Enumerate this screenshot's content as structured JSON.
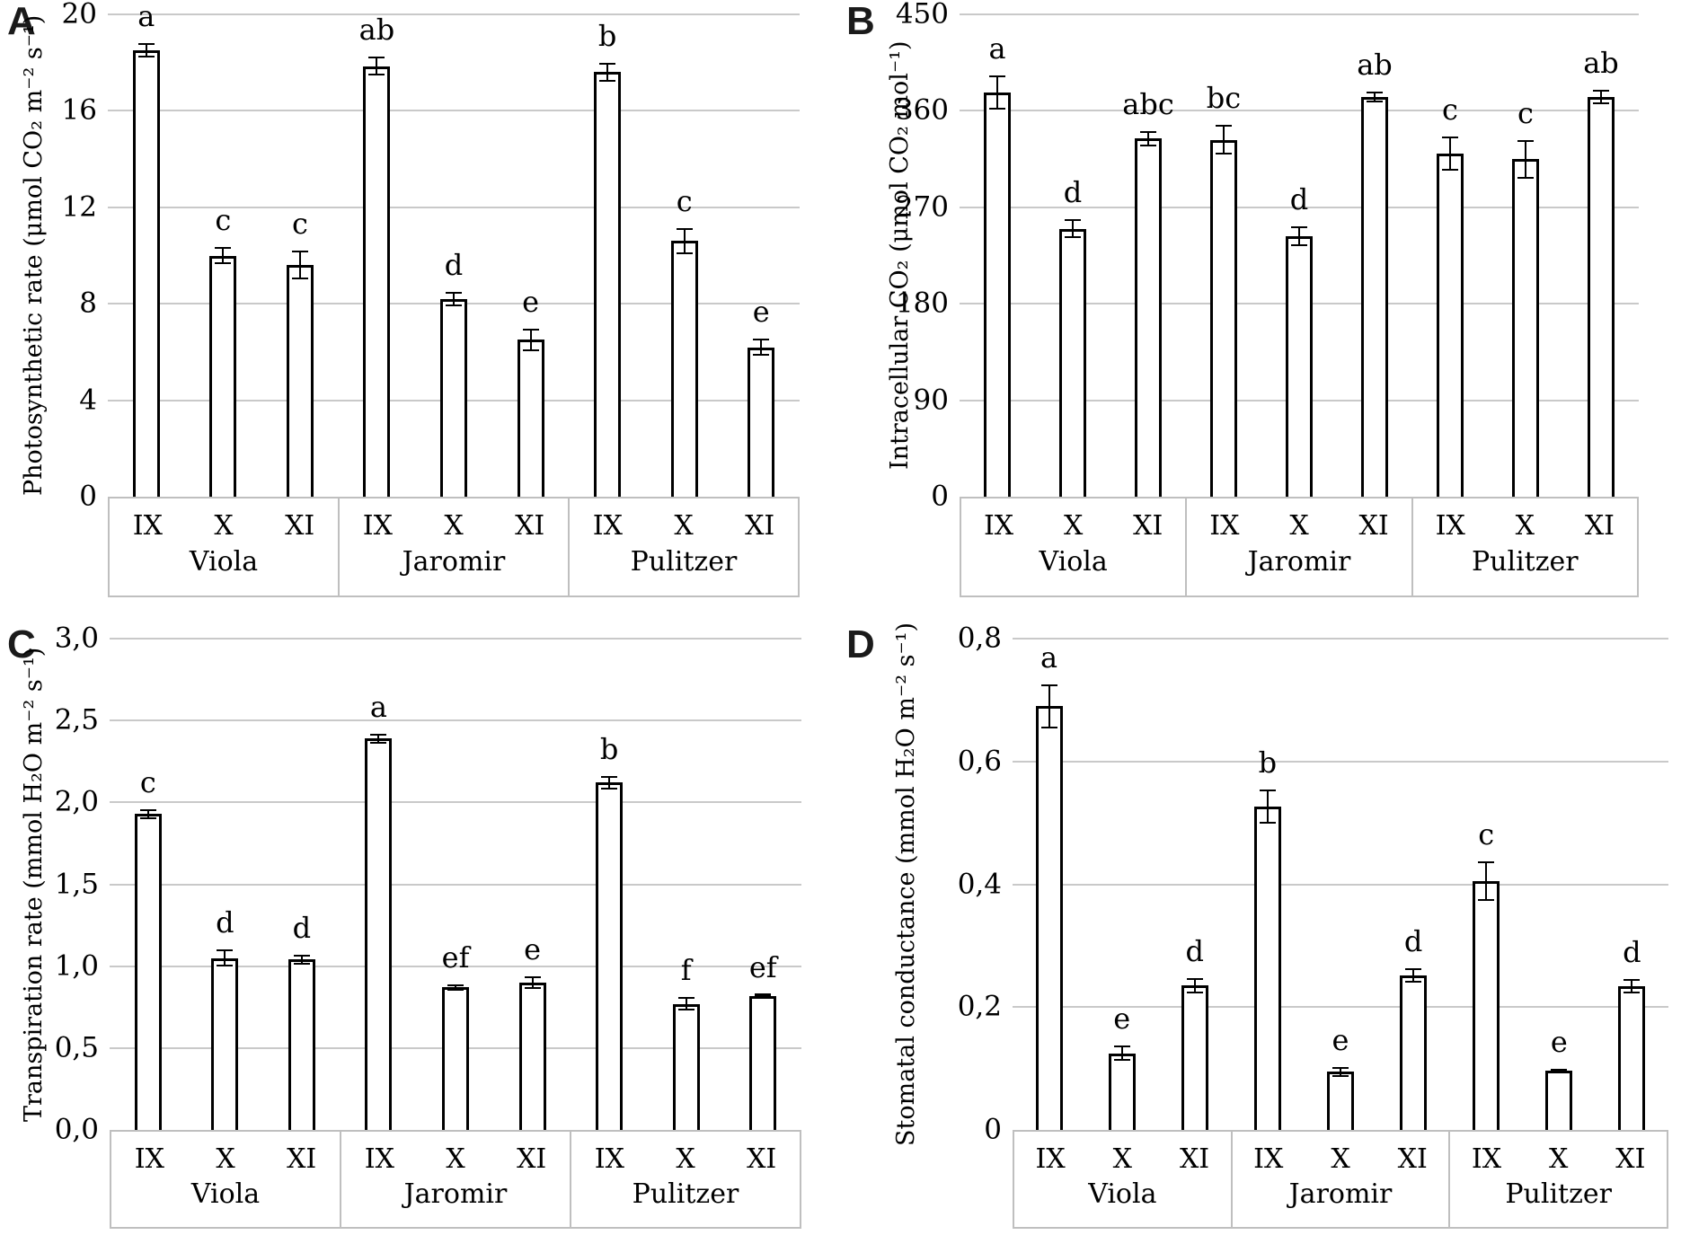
{
  "figure": {
    "background": "#ffffff",
    "text_color": "#000000",
    "gridline_color": "#c9c9c9",
    "bar_fill": "#ffffff",
    "bar_border": "#000000",
    "category_box_border": "#bfbfbf"
  },
  "chart_data": [
    {
      "type": "bar",
      "panel": "A",
      "ylabel": "Photosynthetic rate (μmol CO₂ m⁻² s⁻¹)",
      "ylim": [
        0,
        20
      ],
      "grid": true,
      "legend": "none",
      "yticks": [
        {
          "v": 0,
          "label": "0"
        },
        {
          "v": 4,
          "label": "4"
        },
        {
          "v": 8,
          "label": "8"
        },
        {
          "v": 12,
          "label": "12"
        },
        {
          "v": 16,
          "label": "16"
        },
        {
          "v": 20,
          "label": "20"
        }
      ],
      "groups": [
        {
          "name": "Viola",
          "bars": [
            {
              "month": "IX",
              "value": 18.5,
              "error": 0.3,
              "sig": "a"
            },
            {
              "month": "X",
              "value": 10.0,
              "error": 0.35,
              "sig": "c"
            },
            {
              "month": "XI",
              "value": 9.6,
              "error": 0.6,
              "sig": "c"
            }
          ]
        },
        {
          "name": "Jaromir",
          "bars": [
            {
              "month": "IX",
              "value": 17.85,
              "error": 0.4,
              "sig": "ab"
            },
            {
              "month": "X",
              "value": 8.2,
              "error": 0.3,
              "sig": "d"
            },
            {
              "month": "XI",
              "value": 6.5,
              "error": 0.45,
              "sig": "e"
            }
          ]
        },
        {
          "name": "Pulitzer",
          "bars": [
            {
              "month": "IX",
              "value": 17.6,
              "error": 0.4,
              "sig": "b"
            },
            {
              "month": "X",
              "value": 10.6,
              "error": 0.55,
              "sig": "c"
            },
            {
              "month": "XI",
              "value": 6.2,
              "error": 0.35,
              "sig": "e"
            }
          ]
        }
      ]
    },
    {
      "type": "bar",
      "panel": "B",
      "ylabel": "Intracellular CO₂ (μmol CO₂ mol⁻¹)",
      "ylim": [
        0,
        450
      ],
      "grid": true,
      "legend": "none",
      "yticks": [
        {
          "v": 0,
          "label": "0"
        },
        {
          "v": 90,
          "label": "90"
        },
        {
          "v": 180,
          "label": "180"
        },
        {
          "v": 270,
          "label": "270"
        },
        {
          "v": 360,
          "label": "360"
        },
        {
          "v": 450,
          "label": "450"
        }
      ],
      "groups": [
        {
          "name": "Viola",
          "bars": [
            {
              "month": "IX",
              "value": 377,
              "error": 16,
              "sig": "a"
            },
            {
              "month": "X",
              "value": 250,
              "error": 9,
              "sig": "d"
            },
            {
              "month": "XI",
              "value": 334,
              "error": 7,
              "sig": "abc"
            }
          ]
        },
        {
          "name": "Jaromir",
          "bars": [
            {
              "month": "IX",
              "value": 333,
              "error": 14,
              "sig": "bc"
            },
            {
              "month": "X",
              "value": 243,
              "error": 9,
              "sig": "d"
            },
            {
              "month": "XI",
              "value": 373,
              "error": 5,
              "sig": "ab"
            }
          ]
        },
        {
          "name": "Pulitzer",
          "bars": [
            {
              "month": "IX",
              "value": 320,
              "error": 16,
              "sig": "c"
            },
            {
              "month": "X",
              "value": 315,
              "error": 18,
              "sig": "c"
            },
            {
              "month": "XI",
              "value": 373,
              "error": 7,
              "sig": "ab"
            }
          ]
        }
      ]
    },
    {
      "type": "bar",
      "panel": "C",
      "ylabel": "Transpiration rate (mmol H₂O m⁻² s⁻¹)",
      "ylim": [
        0,
        3.0
      ],
      "grid": true,
      "legend": "none",
      "yticks": [
        {
          "v": 0,
          "label": "0,0"
        },
        {
          "v": 0.5,
          "label": "0,5"
        },
        {
          "v": 1.0,
          "label": "1,0"
        },
        {
          "v": 1.5,
          "label": "1,5"
        },
        {
          "v": 2.0,
          "label": "2,0"
        },
        {
          "v": 2.5,
          "label": "2,5"
        },
        {
          "v": 3.0,
          "label": "3,0"
        }
      ],
      "groups": [
        {
          "name": "Viola",
          "bars": [
            {
              "month": "IX",
              "value": 1.93,
              "error": 0.03,
              "sig": "c"
            },
            {
              "month": "X",
              "value": 1.05,
              "error": 0.05,
              "sig": "d"
            },
            {
              "month": "XI",
              "value": 1.04,
              "error": 0.03,
              "sig": "d"
            }
          ]
        },
        {
          "name": "Jaromir",
          "bars": [
            {
              "month": "IX",
              "value": 2.39,
              "error": 0.03,
              "sig": "a"
            },
            {
              "month": "X",
              "value": 0.87,
              "error": 0.02,
              "sig": "ef"
            },
            {
              "month": "XI",
              "value": 0.9,
              "error": 0.04,
              "sig": "e"
            }
          ]
        },
        {
          "name": "Pulitzer",
          "bars": [
            {
              "month": "IX",
              "value": 2.12,
              "error": 0.04,
              "sig": "b"
            },
            {
              "month": "X",
              "value": 0.77,
              "error": 0.04,
              "sig": "f"
            },
            {
              "month": "XI",
              "value": 0.82,
              "error": 0.01,
              "sig": "ef"
            }
          ]
        }
      ]
    },
    {
      "type": "bar",
      "panel": "D",
      "ylabel": "Stomatal conductance (mmol H₂O m⁻² s⁻¹)",
      "ylim": [
        0,
        0.8
      ],
      "grid": true,
      "legend": "none",
      "yticks": [
        {
          "v": 0,
          "label": "0"
        },
        {
          "v": 0.2,
          "label": "0,2"
        },
        {
          "v": 0.4,
          "label": "0,4"
        },
        {
          "v": 0.6,
          "label": "0,6"
        },
        {
          "v": 0.8,
          "label": "0,8"
        }
      ],
      "groups": [
        {
          "name": "Viola",
          "bars": [
            {
              "month": "IX",
              "value": 0.69,
              "error": 0.036,
              "sig": "a"
            },
            {
              "month": "X",
              "value": 0.125,
              "error": 0.012,
              "sig": "e"
            },
            {
              "month": "XI",
              "value": 0.235,
              "error": 0.012,
              "sig": "d"
            }
          ]
        },
        {
          "name": "Jaromir",
          "bars": [
            {
              "month": "IX",
              "value": 0.527,
              "error": 0.028,
              "sig": "b"
            },
            {
              "month": "X",
              "value": 0.095,
              "error": 0.008,
              "sig": "e"
            },
            {
              "month": "XI",
              "value": 0.252,
              "error": 0.012,
              "sig": "d"
            }
          ]
        },
        {
          "name": "Pulitzer",
          "bars": [
            {
              "month": "IX",
              "value": 0.405,
              "error": 0.032,
              "sig": "c"
            },
            {
              "month": "X",
              "value": 0.096,
              "error": 0.004,
              "sig": "e"
            },
            {
              "month": "XI",
              "value": 0.234,
              "error": 0.012,
              "sig": "d"
            }
          ]
        }
      ]
    }
  ]
}
